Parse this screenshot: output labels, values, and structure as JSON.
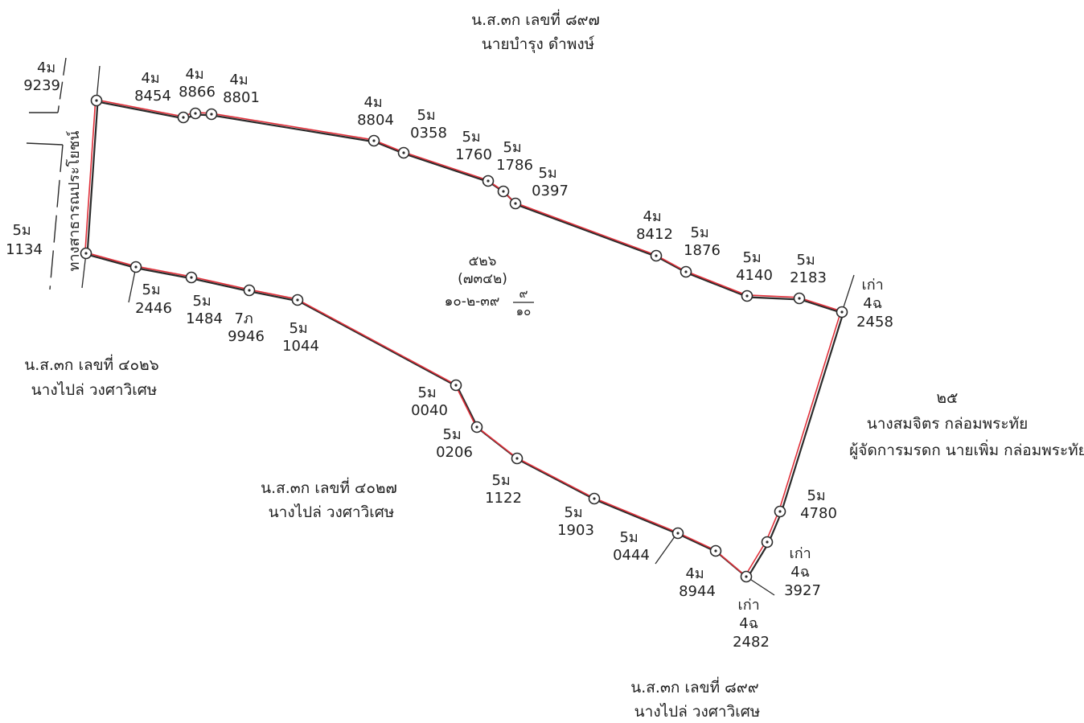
{
  "colors": {
    "boundary_black": "#2b2b2b",
    "boundary_red": "#e0303a",
    "text": "#222222"
  },
  "parcel": {
    "number": "๕๒๖",
    "survey_no": "(๗๓๔๒)",
    "area_main": "๑๐-๒-๓๙",
    "area_frac_num": "๙",
    "area_frac_den": "๑๐"
  },
  "road": {
    "name": "ทางสาธารณประโยชน์"
  },
  "neighbors": {
    "north": {
      "deed": "น.ส.๓ก เลขที่ ๘๙๗",
      "owner": "นายบำรุง ดำพงษ์"
    },
    "west": {
      "deed": "น.ส.๓ก เลขที่ ๔๐๒๖",
      "owner": "นางไปล่ วงศาวิเศษ"
    },
    "south_center": {
      "deed": "น.ส.๓ก เลขที่ ๔๐๒๗",
      "owner": "นางไปล่ วงศาวิเศษ"
    },
    "south": {
      "deed": "น.ส.๓ก เลขที่ ๘๙๙",
      "owner": "นางไปล่ วงศาวิเศษ"
    },
    "east": {
      "number": "๒๕",
      "owner": "นางสมจิตร กล่อมพระทัย",
      "manager": "ผู้จัดการมรดก นายเพิ่ม กล่อมพระทัย"
    }
  },
  "markers": [
    {
      "id": "m1",
      "l1": "4ม",
      "l2": "9239"
    },
    {
      "id": "m2",
      "l1": "4ม",
      "l2": "8454"
    },
    {
      "id": "m3",
      "l1": "4ม",
      "l2": "8866"
    },
    {
      "id": "m4",
      "l1": "4ม",
      "l2": "8801"
    },
    {
      "id": "m5",
      "l1": "4ม",
      "l2": "8804"
    },
    {
      "id": "m6",
      "l1": "5ม",
      "l2": "0358"
    },
    {
      "id": "m7",
      "l1": "5ม",
      "l2": "1760"
    },
    {
      "id": "m8",
      "l1": "5ม",
      "l2": "1786"
    },
    {
      "id": "m9",
      "l1": "5ม",
      "l2": "0397"
    },
    {
      "id": "m10",
      "l1": "4ม",
      "l2": "8412"
    },
    {
      "id": "m11",
      "l1": "5ม",
      "l2": "1876"
    },
    {
      "id": "m12",
      "l1": "5ม",
      "l2": "4140"
    },
    {
      "id": "m13",
      "l1": "5ม",
      "l2": "2183"
    },
    {
      "id": "m14",
      "l1": "เก่า",
      "l2": "4ฉ",
      "l3": "2458"
    },
    {
      "id": "m15",
      "l1": "5ม",
      "l2": "4780"
    },
    {
      "id": "m16",
      "l1": "เก่า",
      "l2": "4ฉ",
      "l3": "3927"
    },
    {
      "id": "m17",
      "l1": "เก่า",
      "l2": "4ฉ",
      "l3": "2482"
    },
    {
      "id": "m18",
      "l1": "4ม",
      "l2": "8944"
    },
    {
      "id": "m19",
      "l1": "5ม",
      "l2": "0444"
    },
    {
      "id": "m20",
      "l1": "5ม",
      "l2": "1903"
    },
    {
      "id": "m21",
      "l1": "5ม",
      "l2": "1122"
    },
    {
      "id": "m22",
      "l1": "5ม",
      "l2": "0206"
    },
    {
      "id": "m23",
      "l1": "5ม",
      "l2": "0040"
    },
    {
      "id": "m24",
      "l1": "5ม",
      "l2": "1044"
    },
    {
      "id": "m25",
      "l1": "7ภ",
      "l2": "9946"
    },
    {
      "id": "m26",
      "l1": "5ม",
      "l2": "1484"
    },
    {
      "id": "m27",
      "l1": "5ม",
      "l2": "2446"
    },
    {
      "id": "m28",
      "l1": "5ม",
      "l2": "1134"
    }
  ]
}
